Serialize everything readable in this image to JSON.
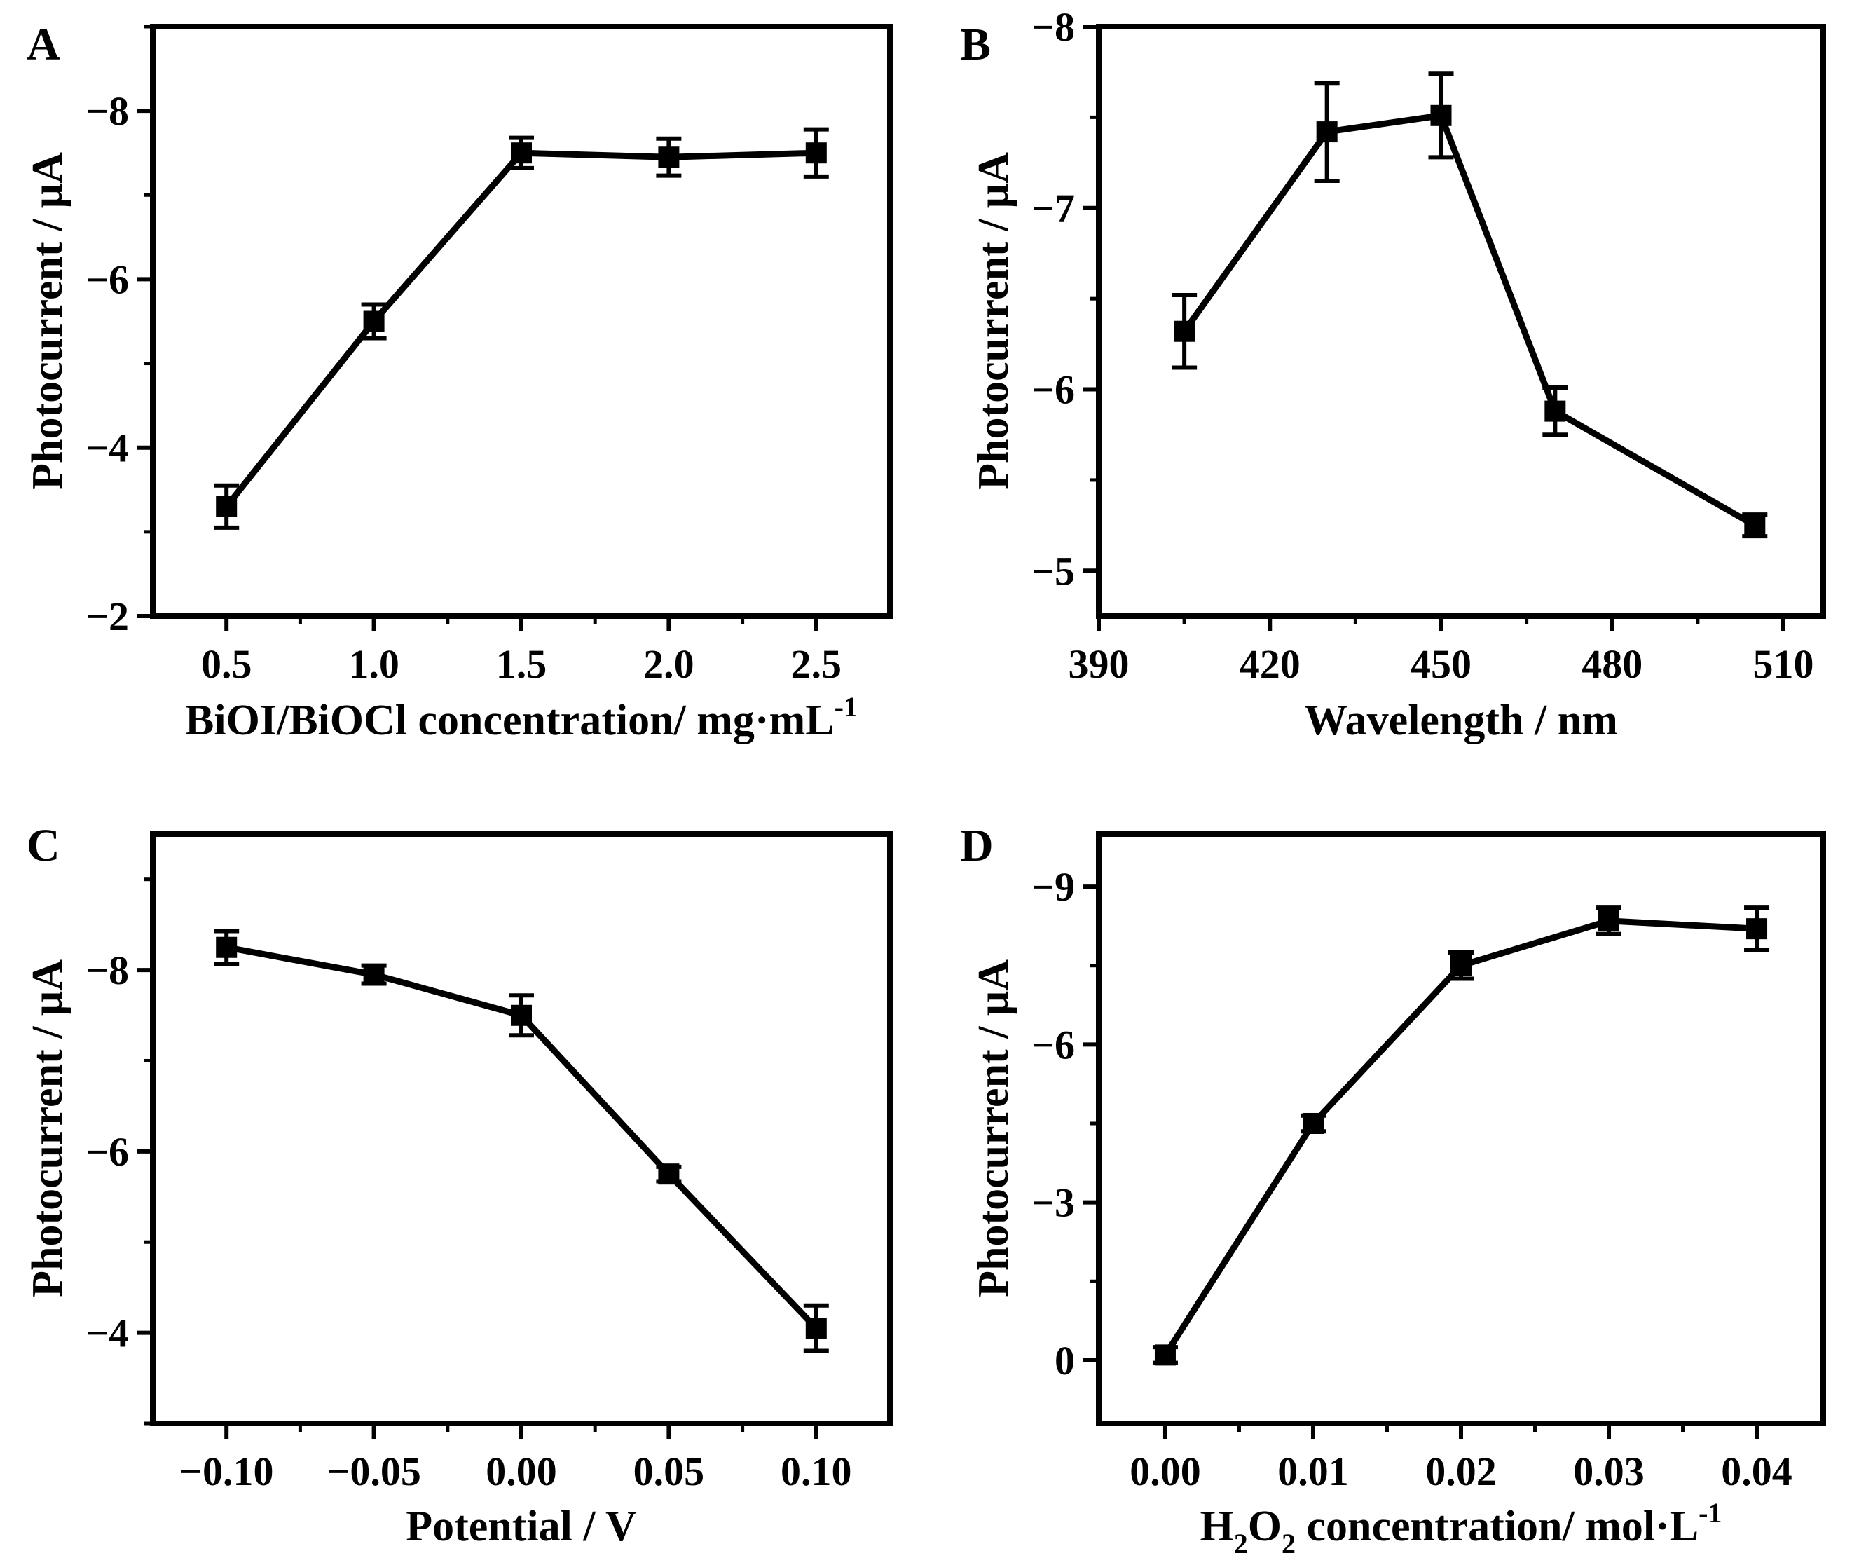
{
  "figure": {
    "colors": {
      "line": "#000000",
      "background": "#ffffff"
    }
  },
  "chart_data": [
    {
      "panel": "A",
      "type": "line",
      "xlabel": "BiOI/BiOCl concentration/ mg·mL",
      "xlabel_sup": "-1",
      "ylabel": "Photocurrent / μA",
      "xlim": [
        0.25,
        2.75
      ],
      "ylim": [
        -2,
        -9
      ],
      "xticks": [
        0.5,
        1.0,
        1.5,
        2.0,
        2.5
      ],
      "xtick_labels": [
        "0.5",
        "1.0",
        "1.5",
        "2.0",
        "2.5"
      ],
      "yticks": [
        -2,
        -4,
        -6,
        -8
      ],
      "ytick_labels": [
        "−2",
        "−4",
        "−6",
        "−8"
      ],
      "x": [
        0.5,
        1.0,
        1.5,
        2.0,
        2.5
      ],
      "y": [
        -3.3,
        -5.5,
        -7.5,
        -7.45,
        -7.5
      ],
      "yerr": [
        0.25,
        0.2,
        0.18,
        0.22,
        0.28
      ]
    },
    {
      "panel": "B",
      "type": "line",
      "xlabel": "Wavelength / nm",
      "xlabel_sup": "",
      "ylabel": "Photocurrent / μA",
      "xlim": [
        390,
        517
      ],
      "ylim": [
        -4.75,
        -8
      ],
      "xticks": [
        390,
        420,
        450,
        480,
        510
      ],
      "xtick_labels": [
        "390",
        "420",
        "450",
        "480",
        "510"
      ],
      "yticks": [
        -5,
        -6,
        -7,
        -8
      ],
      "ytick_labels": [
        "−5",
        "−6",
        "−7",
        "−8"
      ],
      "x": [
        405,
        430,
        450,
        470,
        505
      ],
      "y": [
        -6.32,
        -7.42,
        -7.51,
        -5.88,
        -5.25
      ],
      "yerr": [
        0.2,
        0.27,
        0.23,
        0.13,
        0.06
      ]
    },
    {
      "panel": "C",
      "type": "line",
      "xlabel": "Potential / V",
      "xlabel_sup": "",
      "ylabel": "Photocurrent / μA",
      "xlim": [
        -0.125,
        0.125
      ],
      "ylim": [
        -3,
        -9.5
      ],
      "xticks": [
        -0.1,
        -0.05,
        0.0,
        0.05,
        0.1
      ],
      "xtick_labels": [
        "−0.10",
        "−0.05",
        "0.00",
        "0.05",
        "0.10"
      ],
      "yticks": [
        -4,
        -6,
        -8
      ],
      "ytick_labels": [
        "−4",
        "−6",
        "−8"
      ],
      "x": [
        -0.1,
        -0.05,
        0.0,
        0.05,
        0.1
      ],
      "y": [
        -8.25,
        -7.95,
        -7.5,
        -5.75,
        -4.05
      ],
      "yerr": [
        0.18,
        0.1,
        0.22,
        0.08,
        0.25
      ]
    },
    {
      "panel": "D",
      "type": "line",
      "xlabel": "H",
      "xlabel_sub1": "2",
      "xlabel_mid": "O",
      "xlabel_sub2": "2",
      "xlabel_rest": " concentration/ mol·L",
      "xlabel_sup": "-1",
      "ylabel": "Photocurrent / μA",
      "xlim": [
        -0.0045,
        0.0445
      ],
      "ylim": [
        1.2,
        -10
      ],
      "xticks": [
        0.0,
        0.01,
        0.02,
        0.03,
        0.04
      ],
      "xtick_labels": [
        "0.00",
        "0.01",
        "0.02",
        "0.03",
        "0.04"
      ],
      "yticks": [
        0,
        -3,
        -6,
        -9
      ],
      "ytick_labels": [
        "0",
        "−3",
        "−6",
        "−9"
      ],
      "x": [
        0.0,
        0.01,
        0.02,
        0.03,
        0.04
      ],
      "y": [
        -0.1,
        -4.5,
        -7.5,
        -8.35,
        -8.2
      ],
      "yerr": [
        0.15,
        0.15,
        0.25,
        0.25,
        0.4
      ]
    }
  ]
}
